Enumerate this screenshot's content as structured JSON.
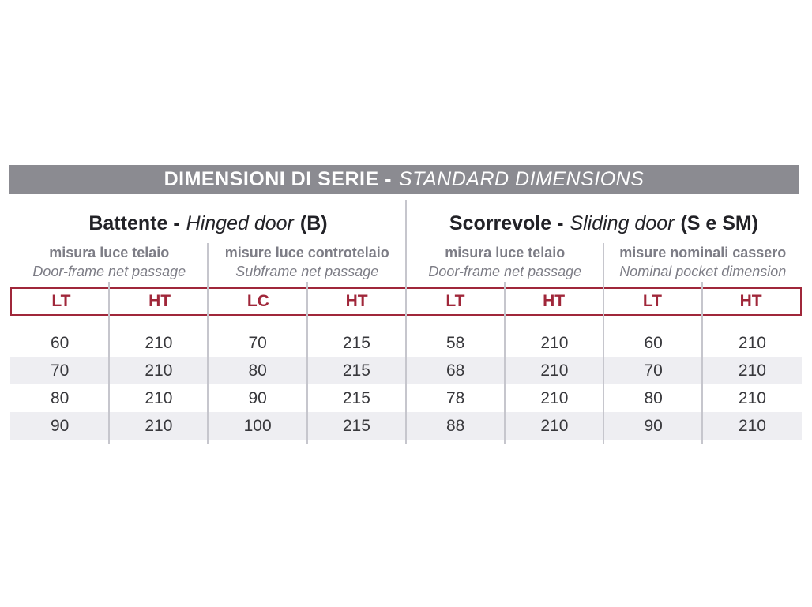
{
  "title_bar": {
    "text_it": "DIMENSIONI DI SERIE -",
    "text_en": "STANDARD DIMENSIONS"
  },
  "sections": {
    "left": {
      "it": "Battente -",
      "en": "Hinged door",
      "code": "(B)"
    },
    "right": {
      "it": "Scorrevole -",
      "en": "Sliding door",
      "code": "(S e SM)"
    }
  },
  "subheaders": [
    {
      "it": "misura luce telaio",
      "en": "Door-frame net passage"
    },
    {
      "it": "misure luce controtelaio",
      "en": "Subframe net passage"
    },
    {
      "it": "misura luce telaio",
      "en": "Door-frame net passage"
    },
    {
      "it": "misure nominali cassero",
      "en": "Nominal pocket dimension"
    }
  ],
  "table": {
    "columns": [
      "LT",
      "HT",
      "LC",
      "HT",
      "LT",
      "HT",
      "LT",
      "HT"
    ],
    "rows": [
      [
        "60",
        "210",
        "70",
        "215",
        "58",
        "210",
        "60",
        "210"
      ],
      [
        "70",
        "210",
        "80",
        "215",
        "68",
        "210",
        "70",
        "210"
      ],
      [
        "80",
        "210",
        "90",
        "215",
        "78",
        "210",
        "80",
        "210"
      ],
      [
        "90",
        "210",
        "100",
        "215",
        "88",
        "210",
        "90",
        "210"
      ]
    ]
  },
  "colors": {
    "banner_gray": "#8B8B91",
    "accent_red": "#A0273A",
    "subheader_gray": "#7D7D86",
    "row_alt_gray": "#EEEEF2",
    "divider_gray": "#C6C6CD",
    "data_text": "#38383C"
  },
  "chart_data": {
    "type": "table",
    "title": "DIMENSIONI DI SERIE - STANDARD DIMENSIONS",
    "column_groups": [
      "Battente - Hinged door (B)",
      "Scorrevole - Sliding door (S e SM)"
    ],
    "columns": [
      "LT",
      "HT",
      "LC",
      "HT",
      "LT",
      "HT",
      "LT",
      "HT"
    ],
    "rows": [
      [
        60,
        210,
        70,
        215,
        58,
        210,
        60,
        210
      ],
      [
        70,
        210,
        80,
        215,
        68,
        210,
        70,
        210
      ],
      [
        80,
        210,
        90,
        215,
        78,
        210,
        80,
        210
      ],
      [
        90,
        210,
        100,
        215,
        88,
        210,
        90,
        210
      ]
    ]
  }
}
